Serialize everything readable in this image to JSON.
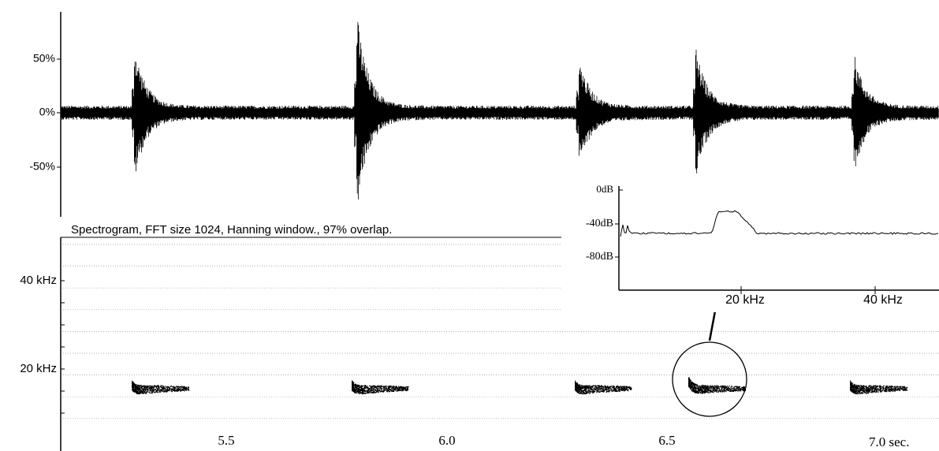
{
  "waveform": {
    "y_labels": [
      "50%",
      "0%",
      "-50%"
    ]
  },
  "spectrogram": {
    "title": "Spectrogram, FFT size 1024, Hanning window., 97% overlap.",
    "y_labels": [
      "40 kHz",
      "20 kHz"
    ],
    "x_labels": [
      "5.5",
      "6.0",
      "6.5",
      "7.0 sec."
    ]
  },
  "inset_spectrum": {
    "y_labels": [
      "0dB",
      "-40dB",
      "-80dB"
    ],
    "x_labels": [
      "20 kHz",
      "40 kHz"
    ]
  }
}
